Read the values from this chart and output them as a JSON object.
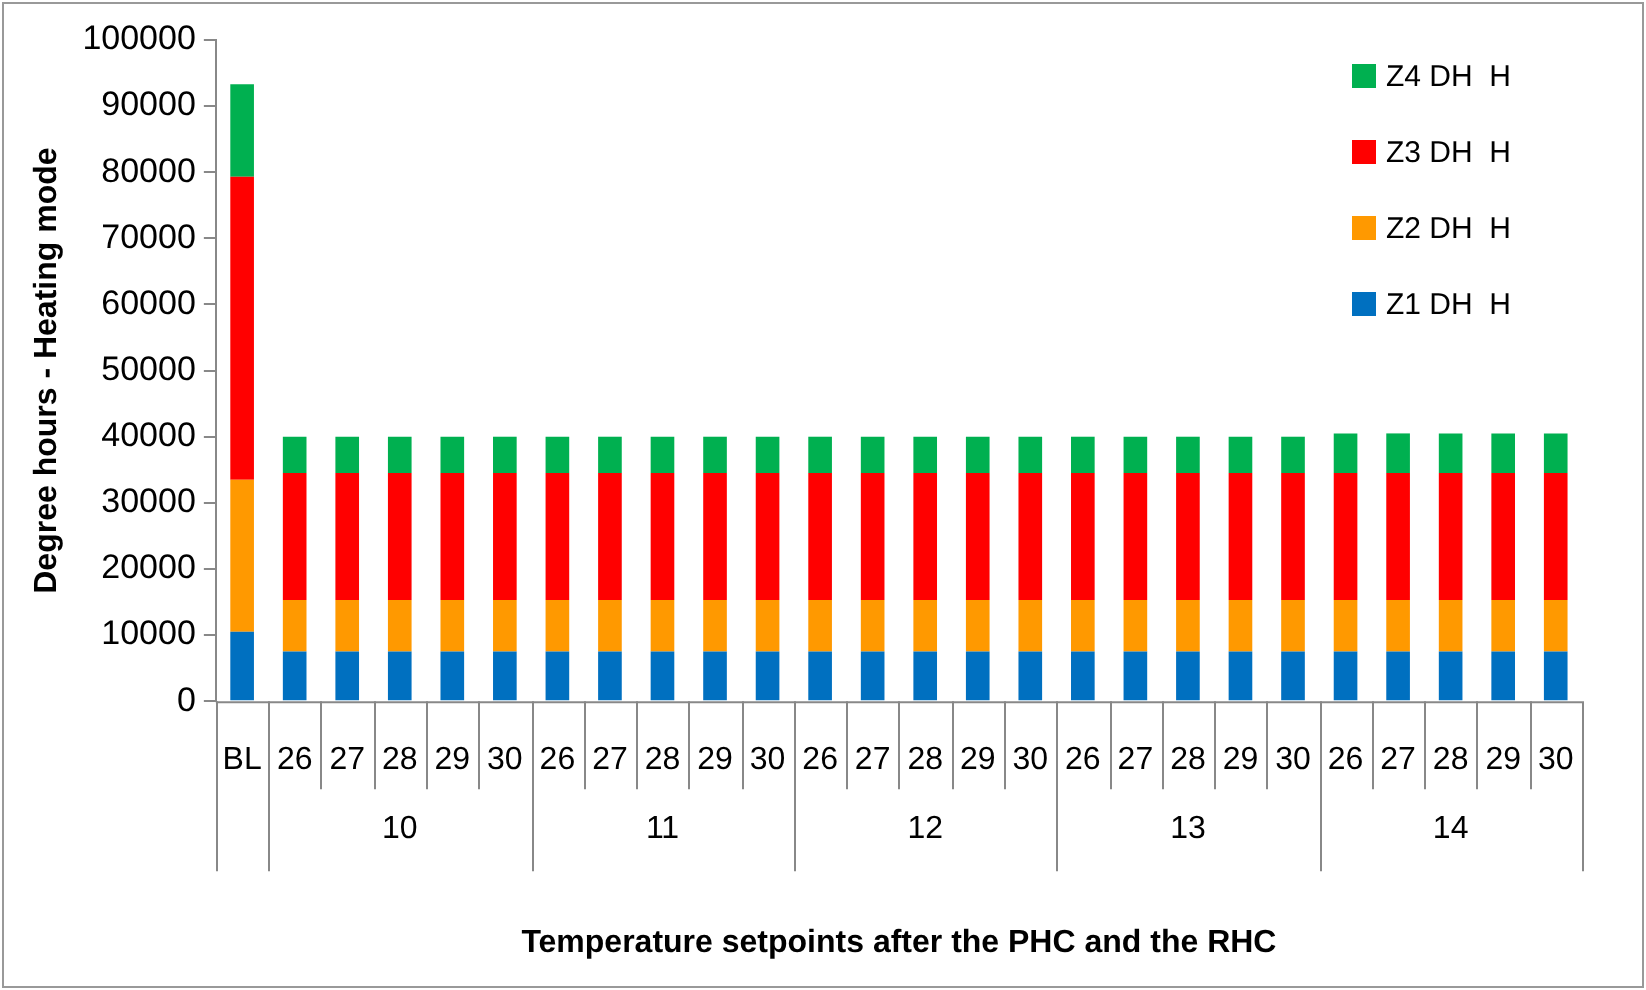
{
  "chart_data": {
    "type": "bar",
    "stacked": true,
    "xlabel": "Temperature setpoints after the PHC and the RHC",
    "ylabel": "Degree hours - Heating mode",
    "categories": [
      "BL",
      "26",
      "27",
      "28",
      "29",
      "30",
      "26",
      "27",
      "28",
      "29",
      "30",
      "26",
      "27",
      "28",
      "29",
      "30",
      "26",
      "27",
      "28",
      "29",
      "30",
      "26",
      "27",
      "28",
      "29",
      "30"
    ],
    "annotations": [
      "10",
      "11",
      "12",
      "13",
      "14"
    ],
    "series": [
      {
        "name": "Z1 DH  H",
        "color": "#0070c0",
        "values": [
          10500,
          7500,
          7500,
          7500,
          7500,
          7500,
          7500,
          7500,
          7500,
          7500,
          7500,
          7500,
          7500,
          7500,
          7500,
          7500,
          7500,
          7500,
          7500,
          7500,
          7500,
          7500,
          7500,
          7500,
          7500,
          7500
        ]
      },
      {
        "name": "Z2 DH  H",
        "color": "#ff9900",
        "values": [
          23000,
          7800,
          7800,
          7800,
          7800,
          7800,
          7800,
          7800,
          7800,
          7800,
          7800,
          7800,
          7800,
          7800,
          7800,
          7800,
          7800,
          7800,
          7800,
          7800,
          7800,
          7800,
          7800,
          7800,
          7800,
          7800
        ]
      },
      {
        "name": "Z3 DH  H",
        "color": "#ff0000",
        "values": [
          45800,
          19200,
          19200,
          19200,
          19200,
          19200,
          19200,
          19200,
          19200,
          19200,
          19200,
          19200,
          19200,
          19200,
          19200,
          19200,
          19200,
          19200,
          19200,
          19200,
          19200,
          19200,
          19200,
          19200,
          19200,
          19200
        ]
      },
      {
        "name": "Z4 DH  H",
        "color": "#00b050",
        "values": [
          14000,
          5500,
          5500,
          5500,
          5500,
          5500,
          5500,
          5500,
          5500,
          5500,
          5500,
          5500,
          5500,
          5500,
          5500,
          5500,
          5500,
          5500,
          5500,
          5500,
          5500,
          6000,
          6000,
          6000,
          6000,
          6000
        ]
      }
    ],
    "ylim": [
      0,
      100000
    ],
    "yticks": [
      0,
      10000,
      20000,
      30000,
      40000,
      50000,
      60000,
      70000,
      80000,
      90000,
      100000
    ],
    "grid": false,
    "legend": "top right"
  }
}
